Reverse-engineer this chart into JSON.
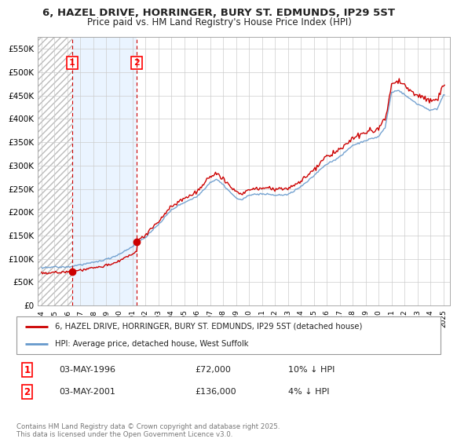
{
  "title_line1": "6, HAZEL DRIVE, HORRINGER, BURY ST. EDMUNDS, IP29 5ST",
  "title_line2": "Price paid vs. HM Land Registry's House Price Index (HPI)",
  "ylim": [
    0,
    575000
  ],
  "yticks": [
    0,
    50000,
    100000,
    150000,
    200000,
    250000,
    300000,
    350000,
    400000,
    450000,
    500000,
    550000
  ],
  "ytick_labels": [
    "£0",
    "£50K",
    "£100K",
    "£150K",
    "£200K",
    "£250K",
    "£300K",
    "£350K",
    "£400K",
    "£450K",
    "£500K",
    "£550K"
  ],
  "xlim_start": 1993.7,
  "xlim_end": 2025.5,
  "xticks": [
    1994,
    1995,
    1996,
    1997,
    1998,
    1999,
    2000,
    2001,
    2002,
    2003,
    2004,
    2005,
    2006,
    2007,
    2008,
    2009,
    2010,
    2011,
    2012,
    2013,
    2014,
    2015,
    2016,
    2017,
    2018,
    2019,
    2020,
    2021,
    2022,
    2023,
    2024,
    2025
  ],
  "purchase1_x": 1996.36,
  "purchase1_y": 72000,
  "purchase1_label": "1",
  "purchase1_date": "03-MAY-1996",
  "purchase1_price": "£72,000",
  "purchase1_hpi": "10% ↓ HPI",
  "purchase2_x": 2001.36,
  "purchase2_y": 136000,
  "purchase2_label": "2",
  "purchase2_date": "03-MAY-2001",
  "purchase2_price": "£136,000",
  "purchase2_hpi": "4% ↓ HPI",
  "red_line_color": "#cc0000",
  "blue_line_color": "#6699cc",
  "blue_fill_color": "#c5ddf0",
  "grid_color": "#cccccc",
  "legend_label_red": "6, HAZEL DRIVE, HORRINGER, BURY ST. EDMUNDS, IP29 5ST (detached house)",
  "legend_label_blue": "HPI: Average price, detached house, West Suffolk",
  "footer_text": "Contains HM Land Registry data © Crown copyright and database right 2025.\nThis data is licensed under the Open Government Licence v3.0.",
  "background_color": "#ffffff"
}
